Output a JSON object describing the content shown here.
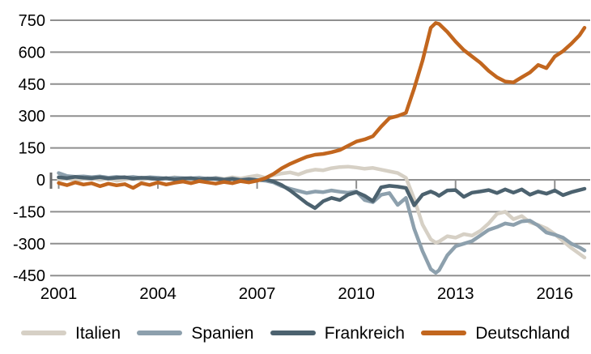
{
  "colors": {
    "background": "#ffffff",
    "grid": "#8f8f8f",
    "axis_tick": "#8f8f8f",
    "text": "#000000"
  },
  "chart_data": {
    "type": "line",
    "title": "",
    "xlabel": "",
    "ylabel": "",
    "grid": true,
    "legend_position": "bottom",
    "ylim": [
      -450,
      750
    ],
    "xlim": [
      2001,
      2017.05
    ],
    "y_ticks": [
      750,
      600,
      450,
      300,
      150,
      0,
      -150,
      -300,
      -450
    ],
    "x_ticks": [
      2001,
      2004,
      2007,
      2010,
      2013,
      2016
    ],
    "x": [
      2001,
      2001.25,
      2001.5,
      2001.75,
      2002,
      2002.25,
      2002.5,
      2002.75,
      2003,
      2003.25,
      2003.5,
      2003.75,
      2004,
      2004.25,
      2004.5,
      2004.75,
      2005,
      2005.25,
      2005.5,
      2005.75,
      2006,
      2006.25,
      2006.5,
      2006.75,
      2007,
      2007.25,
      2007.5,
      2007.75,
      2008,
      2008.25,
      2008.5,
      2008.75,
      2009,
      2009.25,
      2009.5,
      2009.75,
      2010,
      2010.25,
      2010.5,
      2010.75,
      2011,
      2011.25,
      2011.5,
      2011.75,
      2012,
      2012.25,
      2012.4,
      2012.5,
      2012.75,
      2013,
      2013.25,
      2013.5,
      2013.75,
      2014,
      2014.25,
      2014.5,
      2014.75,
      2015,
      2015.25,
      2015.5,
      2015.75,
      2016,
      2016.25,
      2016.5,
      2016.75,
      2016.9
    ],
    "series": [
      {
        "name": "Italien",
        "color": "#d6d0c5",
        "values": [
          2,
          6,
          -2,
          4,
          8,
          0,
          6,
          -4,
          2,
          8,
          0,
          6,
          10,
          4,
          12,
          6,
          0,
          8,
          2,
          10,
          4,
          12,
          6,
          14,
          20,
          10,
          22,
          30,
          35,
          25,
          40,
          48,
          45,
          55,
          60,
          62,
          58,
          52,
          56,
          48,
          40,
          32,
          10,
          -90,
          -210,
          -280,
          -295,
          -290,
          -265,
          -272,
          -255,
          -262,
          -240,
          -205,
          -160,
          -150,
          -185,
          -170,
          -200,
          -212,
          -228,
          -255,
          -288,
          -320,
          -348,
          -365
        ]
      },
      {
        "name": "Spanien",
        "color": "#8da0ad",
        "values": [
          32,
          18,
          14,
          16,
          12,
          16,
          10,
          14,
          10,
          14,
          8,
          12,
          10,
          6,
          10,
          8,
          6,
          10,
          4,
          8,
          2,
          6,
          0,
          4,
          0,
          -4,
          -12,
          -30,
          -42,
          -52,
          -62,
          -55,
          -58,
          -50,
          -56,
          -60,
          -55,
          -95,
          -105,
          -70,
          -62,
          -118,
          -85,
          -230,
          -335,
          -420,
          -437,
          -425,
          -355,
          -312,
          -300,
          -288,
          -262,
          -235,
          -222,
          -205,
          -212,
          -195,
          -192,
          -215,
          -248,
          -258,
          -272,
          -300,
          -318,
          -332
        ]
      },
      {
        "name": "Frankreich",
        "color": "#4c626f",
        "values": [
          12,
          8,
          14,
          10,
          8,
          12,
          6,
          10,
          12,
          6,
          10,
          8,
          4,
          8,
          2,
          6,
          8,
          2,
          6,
          4,
          0,
          4,
          -2,
          2,
          -2,
          2,
          -8,
          -25,
          -50,
          -80,
          -110,
          -133,
          -100,
          -85,
          -95,
          -70,
          -58,
          -75,
          -100,
          -35,
          -28,
          -32,
          -38,
          -120,
          -70,
          -55,
          -65,
          -75,
          -50,
          -48,
          -80,
          -60,
          -55,
          -48,
          -62,
          -45,
          -60,
          -45,
          -70,
          -55,
          -65,
          -50,
          -72,
          -58,
          -48,
          -42
        ]
      },
      {
        "name": "Deutschland",
        "color": "#c2661e",
        "values": [
          -15,
          -25,
          -12,
          -22,
          -16,
          -30,
          -18,
          -26,
          -20,
          -38,
          -16,
          -24,
          -12,
          -22,
          -14,
          -8,
          -16,
          -6,
          -12,
          -18,
          -10,
          -16,
          -6,
          -12,
          -4,
          8,
          28,
          55,
          75,
          92,
          108,
          118,
          122,
          130,
          140,
          160,
          180,
          190,
          205,
          250,
          290,
          300,
          315,
          430,
          560,
          715,
          737,
          733,
          695,
          650,
          610,
          580,
          550,
          512,
          482,
          462,
          458,
          482,
          505,
          540,
          525,
          580,
          605,
          640,
          680,
          715
        ]
      }
    ]
  }
}
